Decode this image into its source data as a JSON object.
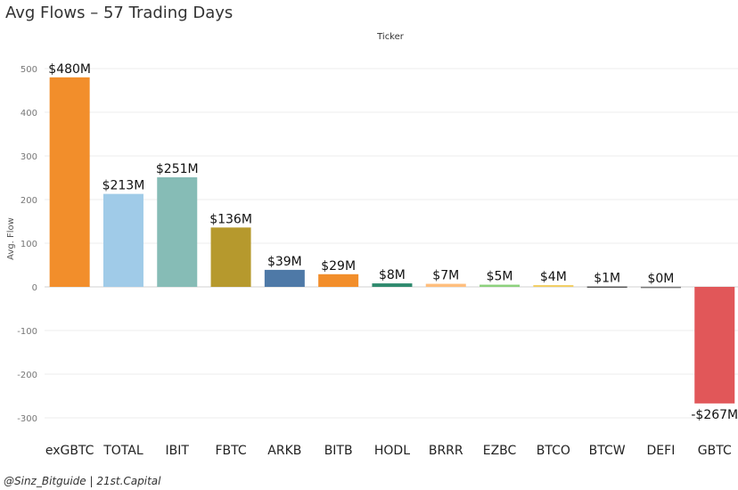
{
  "title": "Avg Flows – 57 Trading Days",
  "credit": "@Sinz_Bitguide | 21st.Capital",
  "chart_data": {
    "type": "bar",
    "column_header": "Ticker",
    "ylabel": "Avg. Flow",
    "ylim": [
      -300,
      500
    ],
    "yticks": [
      -300,
      -200,
      -100,
      0,
      100,
      200,
      300,
      400,
      500
    ],
    "ytick_labels": [
      "-300",
      "-200",
      "-100",
      "0",
      "100",
      "200",
      "300",
      "400",
      "500"
    ],
    "grid": true,
    "categories": [
      "exGBTC",
      "TOTAL",
      "IBIT",
      "FBTC",
      "ARKB",
      "BITB",
      "HODL",
      "BRRR",
      "EZBC",
      "BTCO",
      "BTCW",
      "DEFI",
      "GBTC"
    ],
    "values": [
      480,
      213,
      251,
      136,
      39,
      29,
      8,
      7,
      5,
      4,
      1,
      0.3,
      -267
    ],
    "data_labels": [
      "$480M",
      "$213M",
      "$251M",
      "$136M",
      "$39M",
      "$29M",
      "$8M",
      "$7M",
      "$5M",
      "$4M",
      "$1M",
      "$0M",
      "-$267M"
    ],
    "colors": [
      "#f28e2b",
      "#a0cbe8",
      "#86bcb6",
      "#b6992d",
      "#4e79a7",
      "#f28e2b",
      "#2f8a6e",
      "#ffbe7d",
      "#8cd17d",
      "#f1ce63",
      "#555555",
      "#777777",
      "#e15759"
    ]
  }
}
